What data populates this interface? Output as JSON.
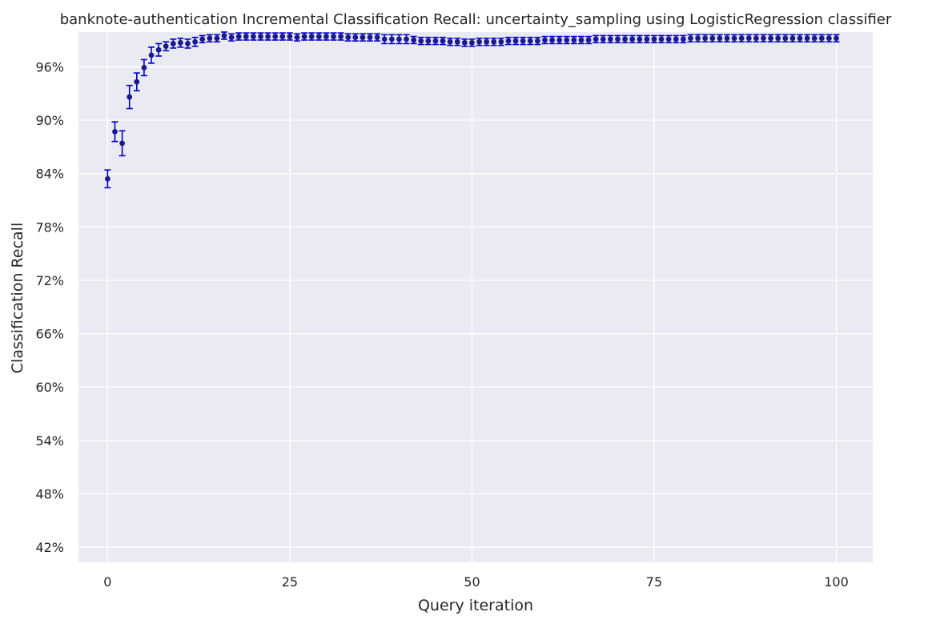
{
  "chart_data": {
    "type": "scatter",
    "title": "banknote-authentication Incremental Classification Recall: uncertainty_sampling using LogisticRegression classifier",
    "xlabel": "Query iteration",
    "ylabel": "Classification Recall",
    "xlim": [
      -4,
      105
    ],
    "ylim": [
      40.3,
      99.9
    ],
    "xticks": [
      0,
      25,
      50,
      75,
      100
    ],
    "yticks": [
      42,
      48,
      54,
      60,
      66,
      72,
      78,
      84,
      90,
      96
    ],
    "ytick_format": "%",
    "grid": true,
    "background_color": "#EAEAF2",
    "grid_color": "#FFFFFF",
    "marker_color": "#1A1A8C",
    "errorbar_color": "#0000CC",
    "series": [
      {
        "x": [
          0,
          1,
          2,
          3,
          4,
          5,
          6,
          7,
          8,
          9,
          10,
          11,
          12,
          13,
          14,
          15,
          16,
          17,
          18,
          19,
          20,
          21,
          22,
          23,
          24,
          25,
          26,
          27,
          28,
          29,
          30,
          31,
          32,
          33,
          34,
          35,
          36,
          37,
          38,
          39,
          40,
          41,
          42,
          43,
          44,
          45,
          46,
          47,
          48,
          49,
          50,
          51,
          52,
          53,
          54,
          55,
          56,
          57,
          58,
          59,
          60,
          61,
          62,
          63,
          64,
          65,
          66,
          67,
          68,
          69,
          70,
          71,
          72,
          73,
          74,
          75,
          76,
          77,
          78,
          79,
          80,
          81,
          82,
          83,
          84,
          85,
          86,
          87,
          88,
          89,
          90,
          91,
          92,
          93,
          94,
          95,
          96,
          97,
          98,
          99,
          100
        ],
        "y": [
          83.4,
          88.7,
          87.4,
          92.6,
          94.3,
          95.9,
          97.3,
          97.9,
          98.3,
          98.6,
          98.7,
          98.6,
          98.8,
          99.1,
          99.2,
          99.2,
          99.5,
          99.3,
          99.4,
          99.4,
          99.4,
          99.4,
          99.4,
          99.4,
          99.4,
          99.4,
          99.3,
          99.4,
          99.4,
          99.4,
          99.4,
          99.4,
          99.4,
          99.3,
          99.3,
          99.3,
          99.3,
          99.3,
          99.1,
          99.1,
          99.1,
          99.1,
          99.0,
          98.9,
          98.9,
          98.9,
          98.9,
          98.8,
          98.8,
          98.7,
          98.7,
          98.8,
          98.8,
          98.8,
          98.8,
          98.9,
          98.9,
          98.9,
          98.9,
          98.9,
          99.0,
          99.0,
          99.0,
          99.0,
          99.0,
          99.0,
          99.0,
          99.1,
          99.1,
          99.1,
          99.1,
          99.1,
          99.1,
          99.1,
          99.1,
          99.1,
          99.1,
          99.1,
          99.1,
          99.1,
          99.2,
          99.2,
          99.2,
          99.2,
          99.2,
          99.2,
          99.2,
          99.2,
          99.2,
          99.2,
          99.2,
          99.2,
          99.2,
          99.2,
          99.2,
          99.2,
          99.2,
          99.2,
          99.2,
          99.2,
          99.2
        ],
        "err": [
          1.0,
          1.1,
          1.4,
          1.3,
          1.0,
          0.9,
          0.9,
          0.7,
          0.5,
          0.5,
          0.5,
          0.5,
          0.5,
          0.4,
          0.4,
          0.4,
          0.4,
          0.4,
          0.4,
          0.4,
          0.4,
          0.4,
          0.4,
          0.4,
          0.4,
          0.4,
          0.4,
          0.4,
          0.4,
          0.4,
          0.4,
          0.4,
          0.4,
          0.4,
          0.4,
          0.4,
          0.4,
          0.4,
          0.5,
          0.5,
          0.5,
          0.5,
          0.4,
          0.4,
          0.4,
          0.4,
          0.4,
          0.4,
          0.4,
          0.4,
          0.4,
          0.4,
          0.4,
          0.4,
          0.4,
          0.4,
          0.4,
          0.4,
          0.4,
          0.4,
          0.4,
          0.4,
          0.4,
          0.4,
          0.4,
          0.4,
          0.4,
          0.4,
          0.4,
          0.4,
          0.4,
          0.4,
          0.4,
          0.4,
          0.4,
          0.4,
          0.4,
          0.4,
          0.4,
          0.4,
          0.4,
          0.4,
          0.4,
          0.4,
          0.4,
          0.4,
          0.4,
          0.4,
          0.4,
          0.4,
          0.4,
          0.4,
          0.4,
          0.4,
          0.4,
          0.4,
          0.4,
          0.4,
          0.4,
          0.4,
          0.4
        ]
      }
    ]
  }
}
